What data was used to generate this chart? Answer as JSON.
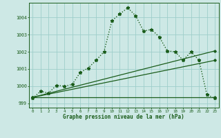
{
  "title": "Graphe pression niveau de la mer (hPa)",
  "background_color": "#cde8e5",
  "grid_color": "#9ececa",
  "line_color_main": "#1a5c1a",
  "xlim": [
    -0.5,
    23.5
  ],
  "ylim": [
    998.75,
    1004.85
  ],
  "yticks": [
    999,
    1000,
    1001,
    1002,
    1003,
    1004
  ],
  "xticks": [
    0,
    1,
    2,
    3,
    4,
    5,
    6,
    7,
    8,
    9,
    10,
    11,
    12,
    13,
    14,
    15,
    16,
    17,
    18,
    19,
    20,
    21,
    22,
    23
  ],
  "series": [
    {
      "x": [
        0,
        1,
        2,
        3,
        4,
        5,
        6,
        7,
        8,
        9,
        10,
        11,
        12,
        13,
        14,
        15,
        16,
        17,
        18,
        19,
        20,
        21,
        22,
        23
      ],
      "y": [
        999.3,
        999.7,
        999.6,
        1000.05,
        1000.0,
        1000.1,
        1000.8,
        1001.05,
        1001.5,
        1002.0,
        1003.8,
        1004.2,
        1004.55,
        1004.1,
        1003.2,
        1003.3,
        1002.85,
        1002.05,
        1002.0,
        1001.5,
        1002.0,
        1001.5,
        999.5,
        999.3
      ],
      "color": "#1a5c1a",
      "lw": 1.0,
      "marker": "*",
      "markersize": 3.5,
      "linestyle": "dotted"
    },
    {
      "x": [
        0,
        23
      ],
      "y": [
        999.35,
        999.35
      ],
      "color": "#1a5c1a",
      "lw": 0.9,
      "marker": "D",
      "markersize": 1.8,
      "linestyle": "solid"
    },
    {
      "x": [
        0,
        23
      ],
      "y": [
        999.35,
        1001.5
      ],
      "color": "#1a5c1a",
      "lw": 0.9,
      "marker": "D",
      "markersize": 1.8,
      "linestyle": "solid"
    },
    {
      "x": [
        0,
        23
      ],
      "y": [
        999.35,
        1002.05
      ],
      "color": "#1a5c1a",
      "lw": 0.9,
      "marker": "D",
      "markersize": 1.8,
      "linestyle": "solid"
    }
  ],
  "figsize": [
    3.2,
    2.0
  ],
  "dpi": 100
}
